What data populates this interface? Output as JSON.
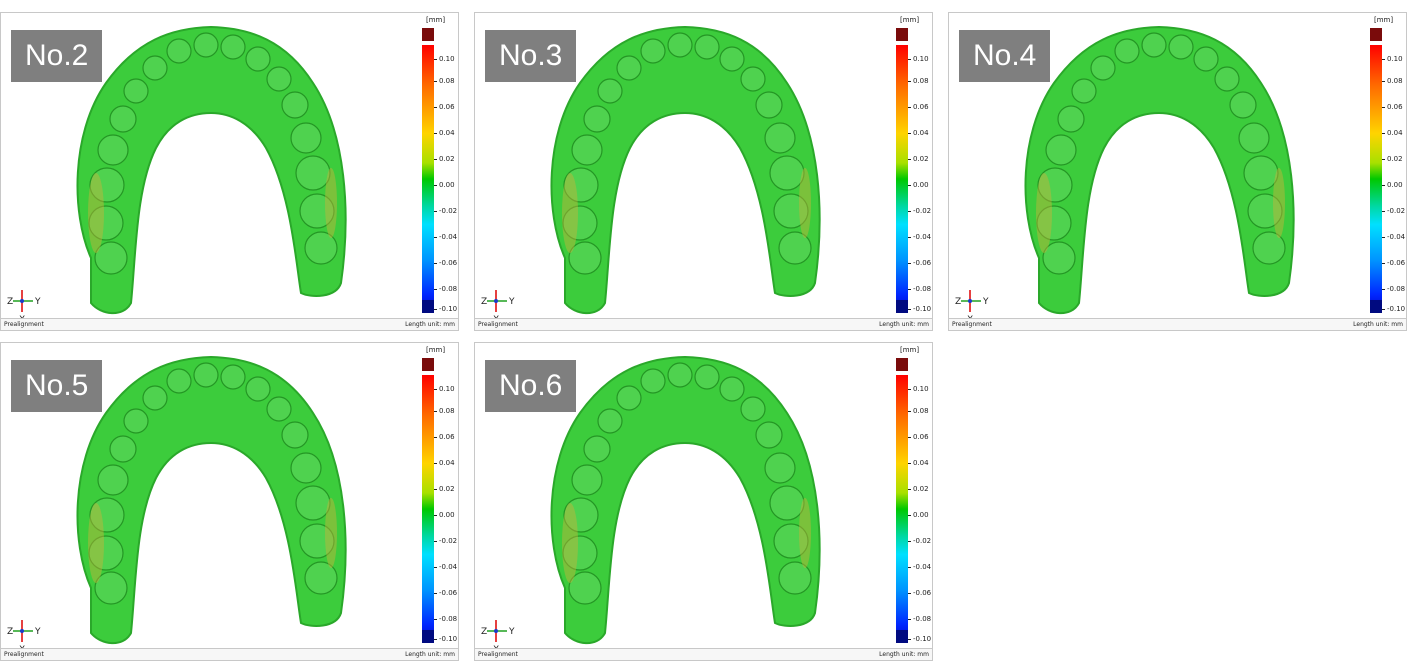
{
  "panels": [
    {
      "label": "No.2"
    },
    {
      "label": "No.3"
    },
    {
      "label": "No.4"
    },
    {
      "label": "No.5"
    },
    {
      "label": "No.6"
    }
  ],
  "color_scale": {
    "unit": "[mm]",
    "ticks": [
      "0.10",
      "0.08",
      "0.06",
      "0.04",
      "0.02",
      "0.00",
      "-0.02",
      "-0.04",
      "-0.06",
      "-0.08",
      "-0.10"
    ],
    "over_color": "#7a0b0b",
    "under_color": "#000a80",
    "colors": [
      "#ff0000",
      "#ff6a00",
      "#ffd400",
      "#a8e000",
      "#00c800",
      "#00d8a0",
      "#00e0ff",
      "#0096ff",
      "#0028ff",
      "#0000c8"
    ]
  },
  "axes": {
    "z": "Z",
    "y": "Y",
    "x": "X"
  },
  "status": {
    "left": "Prealignment",
    "right": "Length unit: mm"
  },
  "jaw_colors": {
    "base": "#3ccc3c",
    "tooth": "#4fd24f",
    "shade": "#2aa82a",
    "warm": "#c8b43a"
  }
}
